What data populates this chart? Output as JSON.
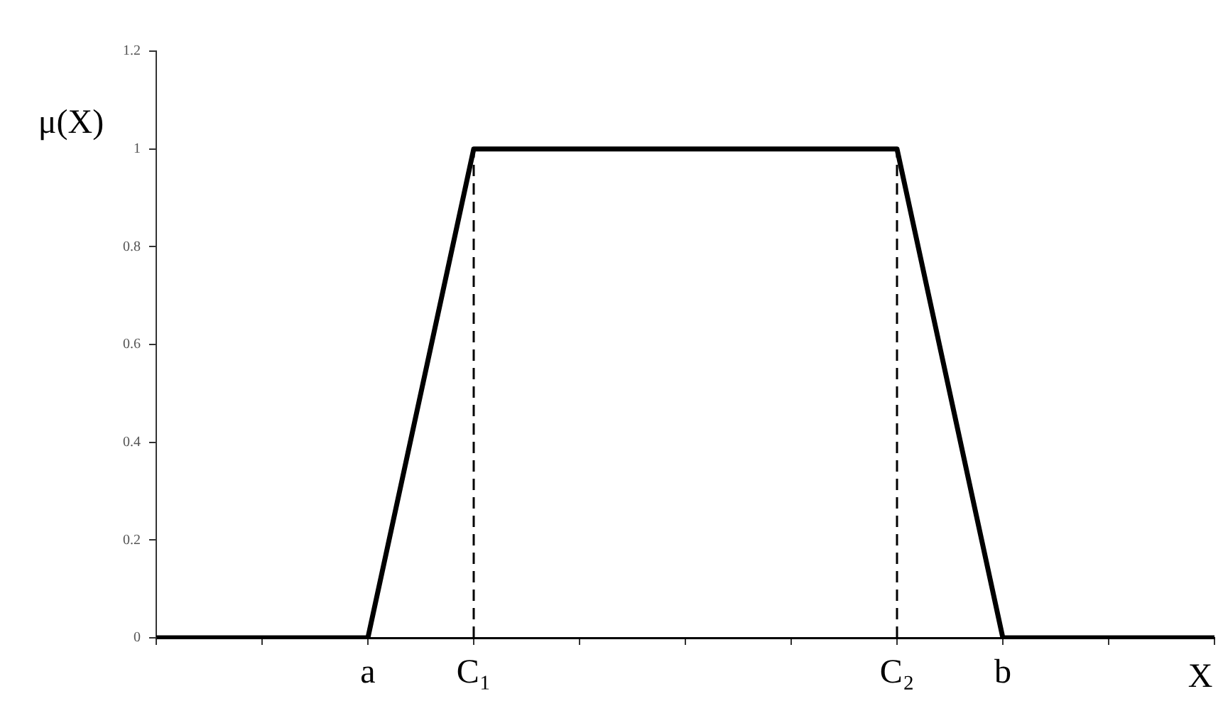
{
  "chart_data": {
    "type": "line",
    "xlabel": "X",
    "ylabel": "μ(X)",
    "marker": "none",
    "categories": [
      null,
      null,
      "a",
      "C₁",
      null,
      null,
      null,
      "C₂",
      "b",
      null,
      null
    ],
    "ylim": [
      0,
      1.2
    ],
    "yticks": [
      0,
      0.2,
      0.4,
      0.6,
      0.8,
      1,
      1.2
    ],
    "series": [
      {
        "color": "#000000",
        "line_style": "solid",
        "values": [
          0,
          0,
          0,
          1,
          1,
          1,
          1,
          1,
          0,
          0,
          0
        ]
      }
    ],
    "ref_lines": [
      {
        "axis": "x",
        "value": "C₁",
        "color": "#000000",
        "line_style": "dashed"
      },
      {
        "axis": "x",
        "value": "C₂",
        "color": "#000000",
        "line_style": "dashed"
      }
    ]
  }
}
